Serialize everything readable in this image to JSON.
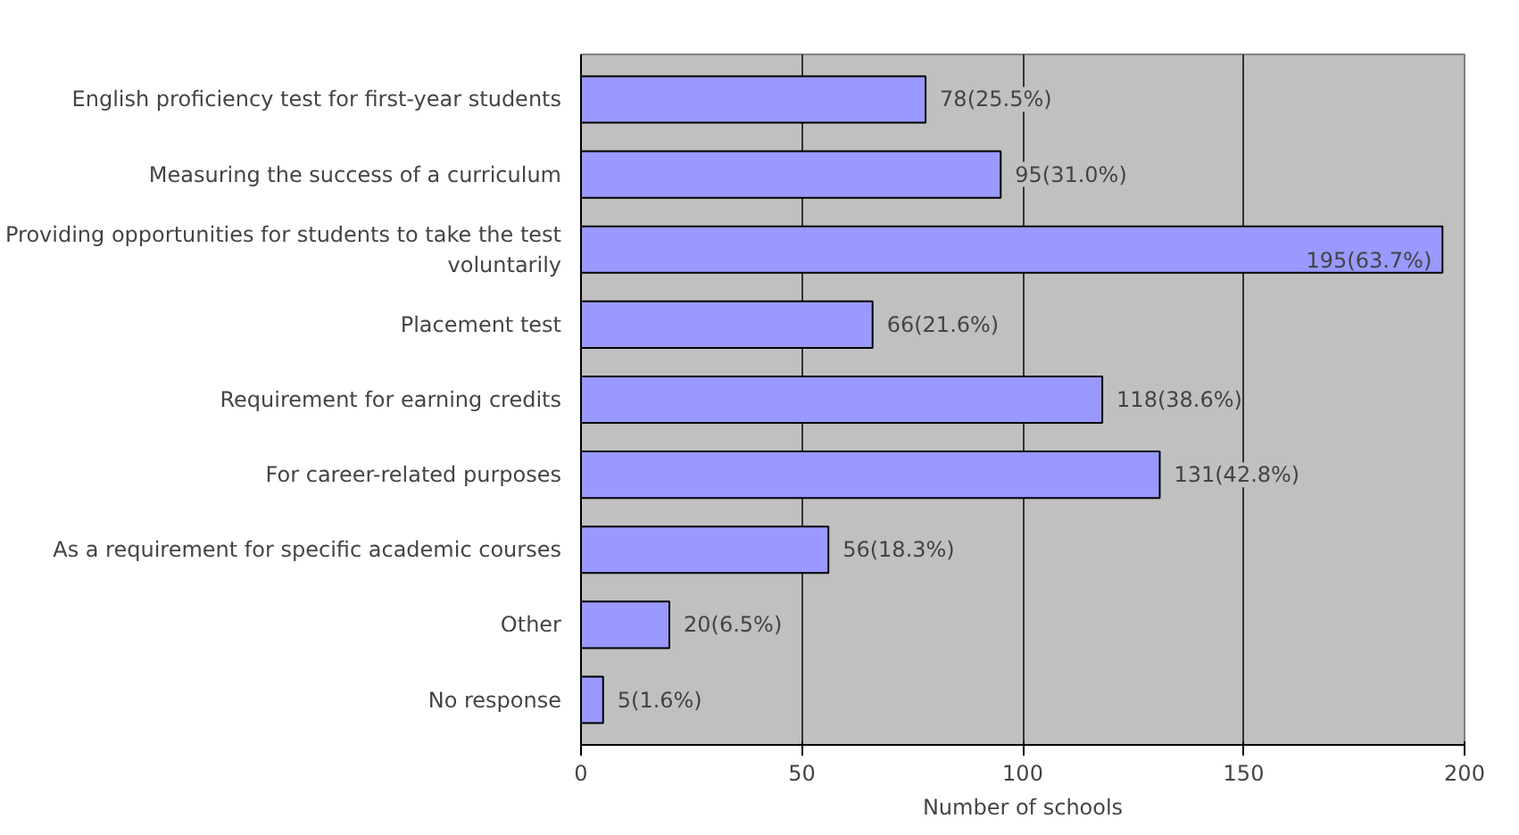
{
  "chart_data": {
    "type": "bar",
    "orientation": "horizontal",
    "xlabel": "Number of schools",
    "categories": [
      "English proficiency test for first-year students",
      "Measuring the success of a curriculum",
      "Providing opportunities for students to take the test voluntarily",
      "Placement test",
      "Requirement for earning credits",
      "For career-related purposes",
      "As a requirement for specific academic courses",
      "Other",
      "No response"
    ],
    "values": [
      78,
      95,
      195,
      66,
      118,
      131,
      56,
      20,
      5
    ],
    "value_labels": [
      "78(25.5%)",
      "95(31.0%)",
      "195(63.7%)",
      "66(21.6%)",
      "118(38.6%)",
      "131(42.8%)",
      "56(18.3%)",
      "20(6.5%)",
      "5(1.6%)"
    ],
    "color": "#9999ff",
    "xlim": [
      0,
      200
    ],
    "xticks": [
      0,
      50,
      100,
      150,
      200
    ],
    "grid": "x"
  }
}
